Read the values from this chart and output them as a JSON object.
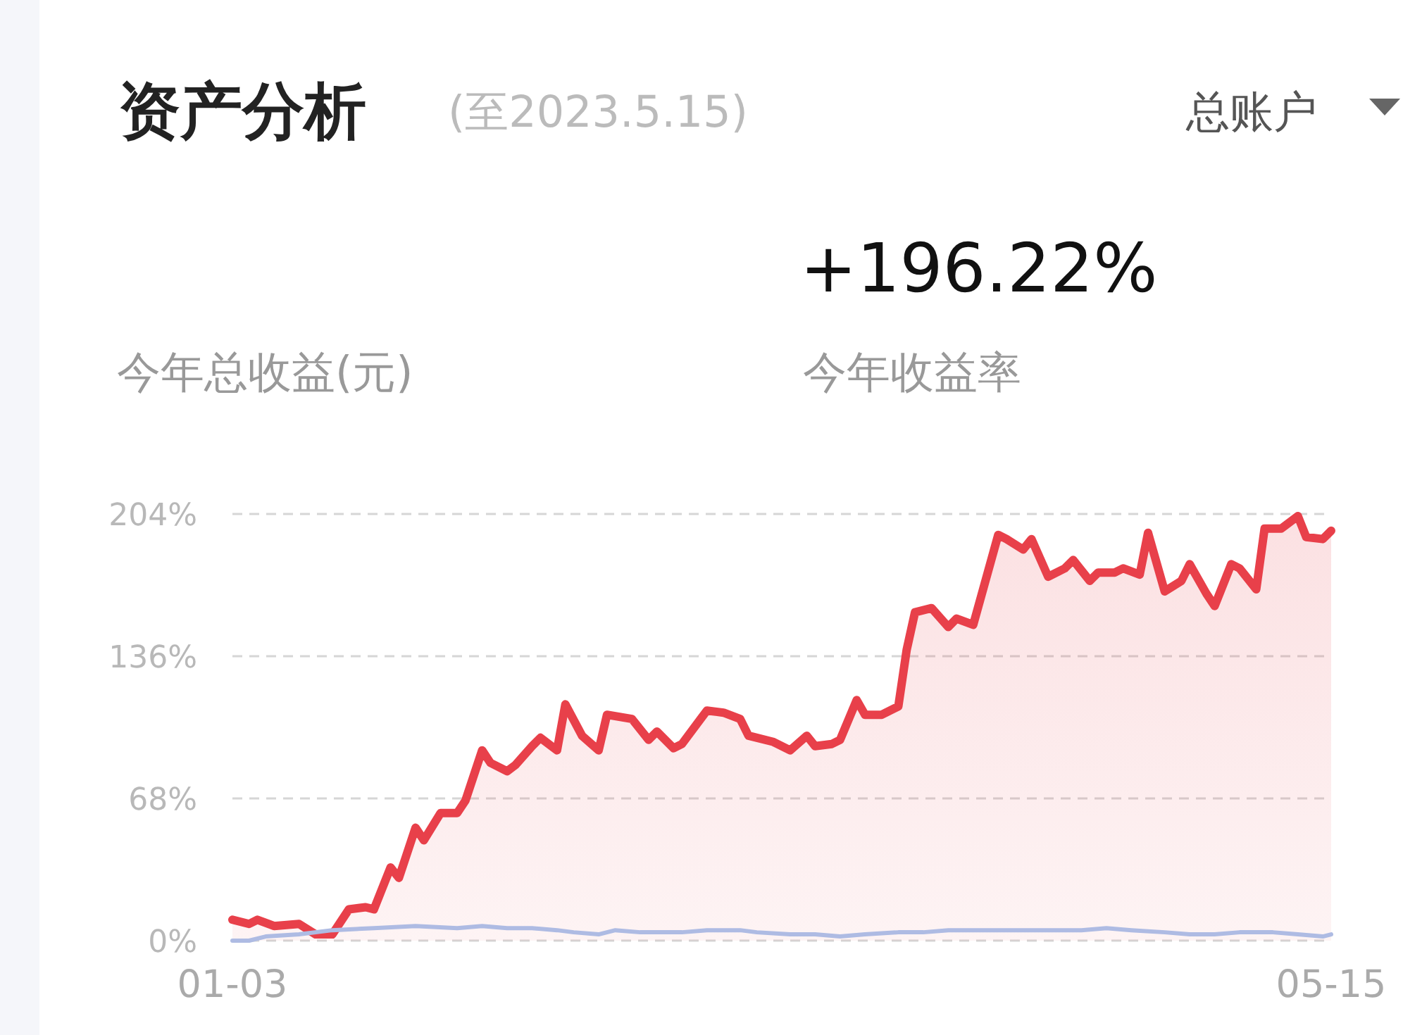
{
  "chart_data": {
    "type": "area",
    "title": "资产分析",
    "subtitle": "(至2023.5.15)",
    "annotations": [
      "总账户",
      "+196.22%",
      "今年收益率",
      "今年总收益(元)"
    ],
    "series": [
      {
        "color": "#e8404a",
        "x": [
          "--01-03",
          "--01-05",
          "--01-06",
          "--01-08",
          "--01-11",
          "--01-13",
          "--01-15",
          "--01-17",
          "--01-19",
          "--01-20",
          "--01-22",
          "--01-23",
          "--01-25",
          "--01-26",
          "--01-28",
          "--01-30",
          "--01-31",
          "--02-02",
          "--02-03",
          "--02-05",
          "--02-06",
          "--02-08",
          "--02-09",
          "--02-11",
          "--02-12",
          "--02-14",
          "--02-16",
          "--02-17",
          "--02-20",
          "--02-22",
          "--02-23",
          "--02-25",
          "--02-26",
          "--03-01",
          "--03-03",
          "--03-05",
          "--03-06",
          "--03-09",
          "--03-11",
          "--03-13",
          "--03-14",
          "--03-16",
          "--03-17",
          "--03-19",
          "--03-20",
          "--03-22",
          "--03-24",
          "--03-25",
          "--03-26",
          "--03-28",
          "--03-30",
          "--03-31",
          "--04-02",
          "--04-05",
          "--04-06",
          "--04-08",
          "--04-09",
          "--04-11",
          "--04-13",
          "--04-14",
          "--04-16",
          "--04-17",
          "--04-19",
          "--04-20",
          "--04-22",
          "--04-23",
          "--04-25",
          "--04-27",
          "--04-28",
          "--04-30",
          "--05-01",
          "--05-03",
          "--05-04",
          "--05-06",
          "--05-07",
          "--05-09",
          "--05-11",
          "--05-12",
          "--05-14",
          "--05-15"
        ],
        "values": [
          10,
          8,
          10,
          7,
          8,
          3,
          3,
          15,
          16,
          15,
          35,
          30,
          54,
          48,
          61,
          61,
          67,
          91,
          85,
          81,
          84,
          93,
          97,
          91,
          113,
          98,
          91,
          108,
          106,
          96,
          100,
          92,
          94,
          110,
          109,
          106,
          98,
          95,
          91,
          98,
          93,
          94,
          96,
          115,
          108,
          108,
          112,
          139,
          157,
          159,
          150,
          154,
          151,
          194,
          192,
          187,
          192,
          174,
          178,
          182,
          172,
          176,
          176,
          178,
          175,
          195,
          167,
          172,
          180,
          166,
          160,
          180,
          178,
          168,
          197,
          197,
          203,
          193,
          192,
          196
        ]
      },
      {
        "type": "line",
        "color": "#aebbe3",
        "x": [
          "--01-03",
          "--01-05",
          "--01-07",
          "--01-11",
          "--01-15",
          "--01-20",
          "--01-25",
          "--01-30",
          "--02-02",
          "--02-05",
          "--02-08",
          "--02-11",
          "--02-13",
          "--02-16",
          "--02-18",
          "--02-21",
          "--02-26",
          "--03-01",
          "--03-05",
          "--03-07",
          "--03-11",
          "--03-14",
          "--03-17",
          "--03-20",
          "--03-24",
          "--03-27",
          "--03-30",
          "--04-02",
          "--04-05",
          "--04-09",
          "--04-12",
          "--04-15",
          "--04-18",
          "--04-21",
          "--04-25",
          "--04-28",
          "--05-01",
          "--05-04",
          "--05-08",
          "--05-11",
          "--05-14",
          "--05-15"
        ],
        "values": [
          0,
          0,
          2,
          3,
          5,
          6,
          7,
          6,
          7,
          6,
          6,
          5,
          4,
          3,
          5,
          4,
          4,
          5,
          5,
          4,
          3,
          3,
          2,
          3,
          4,
          4,
          5,
          5,
          5,
          5,
          5,
          5,
          6,
          5,
          4,
          3,
          3,
          4,
          4,
          3,
          2,
          3
        ]
      }
    ],
    "xlim": [
      "--01-03",
      "--05-15"
    ],
    "xticks": [
      {
        "value": "--01-03",
        "label": "01-03"
      },
      {
        "value": "--05-15",
        "label": "05-15"
      }
    ],
    "ylim": [
      0,
      204
    ],
    "yticks": [
      {
        "value": 0,
        "label": "0%"
      },
      {
        "value": 68,
        "label": "68%"
      },
      {
        "value": 136,
        "label": "136%"
      },
      {
        "value": 204,
        "label": "204%"
      }
    ],
    "grid": "y"
  }
}
